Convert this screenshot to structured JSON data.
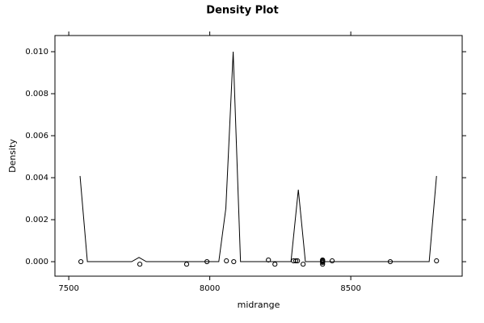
{
  "chart_data": {
    "type": "line",
    "title": "Density Plot",
    "x_label": "midrange",
    "y_label": "Density",
    "x": [
      7540,
      7566,
      7723,
      7749,
      7775,
      8032,
      8057,
      8083,
      8109,
      8288,
      8314,
      8339,
      8778,
      8804
    ],
    "values": [
      0.00408,
      0,
      0,
      0.0002,
      0,
      0,
      0.00254,
      0.01,
      0,
      0,
      0.00343,
      0,
      0,
      0.00408
    ],
    "color": "#000000",
    "points": {
      "x": [
        7543,
        7752,
        7918,
        7990,
        8059,
        8085,
        8208,
        8231,
        8297,
        8305,
        8311,
        8331,
        8400,
        8400,
        8400,
        8400,
        8400,
        8434,
        8640,
        8804
      ],
      "y": [
        0,
        -0.00012,
        -0.00012,
        0,
        4e-05,
        0,
        8e-05,
        -0.00012,
        4e-05,
        4e-05,
        4e-05,
        -0.00012,
        8e-05,
        4e-05,
        0,
        -4e-05,
        -0.00012,
        4e-05,
        0,
        4e-05
      ]
    },
    "xlim": [
      7451,
      8895
    ],
    "ylim": [
      -0.00069,
      0.01077
    ],
    "xticks": [
      7500,
      8000,
      8500
    ],
    "yticks": [
      {
        "value": 0,
        "label": "0.000"
      },
      {
        "value": 0.002,
        "label": "0.002"
      },
      {
        "value": 0.004,
        "label": "0.004"
      },
      {
        "value": 0.006,
        "label": "0.006"
      },
      {
        "value": 0.008,
        "label": "0.008"
      },
      {
        "value": 0.01,
        "label": "0.010"
      }
    ]
  }
}
